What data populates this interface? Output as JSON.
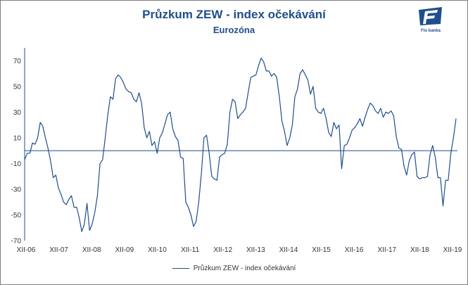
{
  "title": "Průzkum ZEW - index očekávání",
  "subtitle": "Eurozóna",
  "logo": {
    "text": "Fio banka",
    "color": "#1f4e8c"
  },
  "chart_data": {
    "type": "line",
    "ylim": [
      -70,
      80
    ],
    "yticks": [
      70,
      50,
      30,
      10,
      -10,
      -30,
      -50,
      -70
    ],
    "x_tick_labels": [
      "XII-06",
      "XII-07",
      "XII-08",
      "XII-09",
      "XII-10",
      "XII-11",
      "XII-12",
      "XII-13",
      "XII-14",
      "XII-15",
      "XII-16",
      "XII-17",
      "XII-18",
      "XII-19"
    ],
    "grid": false,
    "legend_position": "bottom",
    "series": [
      {
        "name": "Průzkum ZEW - index očekávání",
        "color": "#1f4e8c",
        "values": [
          -7,
          -2,
          -2,
          6,
          5,
          10,
          22,
          19,
          10,
          2,
          -8,
          -21,
          -19,
          -29,
          -34,
          -40,
          -42,
          -38,
          -35,
          -44,
          -44,
          -52,
          -63,
          -57,
          -41,
          -62,
          -57,
          -48,
          -35,
          -10,
          -7,
          10,
          28,
          42,
          40,
          56,
          59,
          57,
          53,
          48,
          46,
          45,
          40,
          38,
          45,
          37,
          18,
          10,
          15,
          4,
          7,
          -2,
          10,
          14,
          21,
          28,
          30,
          17,
          11,
          8,
          -5,
          -6,
          -40,
          -44,
          -50,
          -59,
          -55,
          -40,
          -18,
          10,
          12,
          -2,
          -20,
          -22,
          -23,
          -5,
          -3,
          -2,
          5,
          30,
          40,
          38,
          25,
          28,
          30,
          33,
          45,
          57,
          58,
          59,
          66,
          72,
          69,
          62,
          62,
          58,
          60,
          57,
          42,
          23,
          15,
          4,
          10,
          20,
          42,
          48,
          60,
          63,
          59,
          55,
          44,
          50,
          33,
          30,
          29,
          33,
          25,
          14,
          11,
          22,
          17,
          20,
          -14,
          4,
          5,
          10,
          16,
          18,
          21,
          25,
          19,
          26,
          32,
          37,
          35,
          31,
          29,
          33,
          26,
          30,
          29,
          31,
          27,
          11,
          2,
          1,
          -12,
          -19,
          -8,
          -3,
          -1,
          -20,
          -22,
          -21,
          -21,
          -20,
          -3,
          4,
          -5,
          -21,
          -21,
          -43,
          -23,
          -23,
          -2,
          10,
          25
        ]
      }
    ]
  }
}
